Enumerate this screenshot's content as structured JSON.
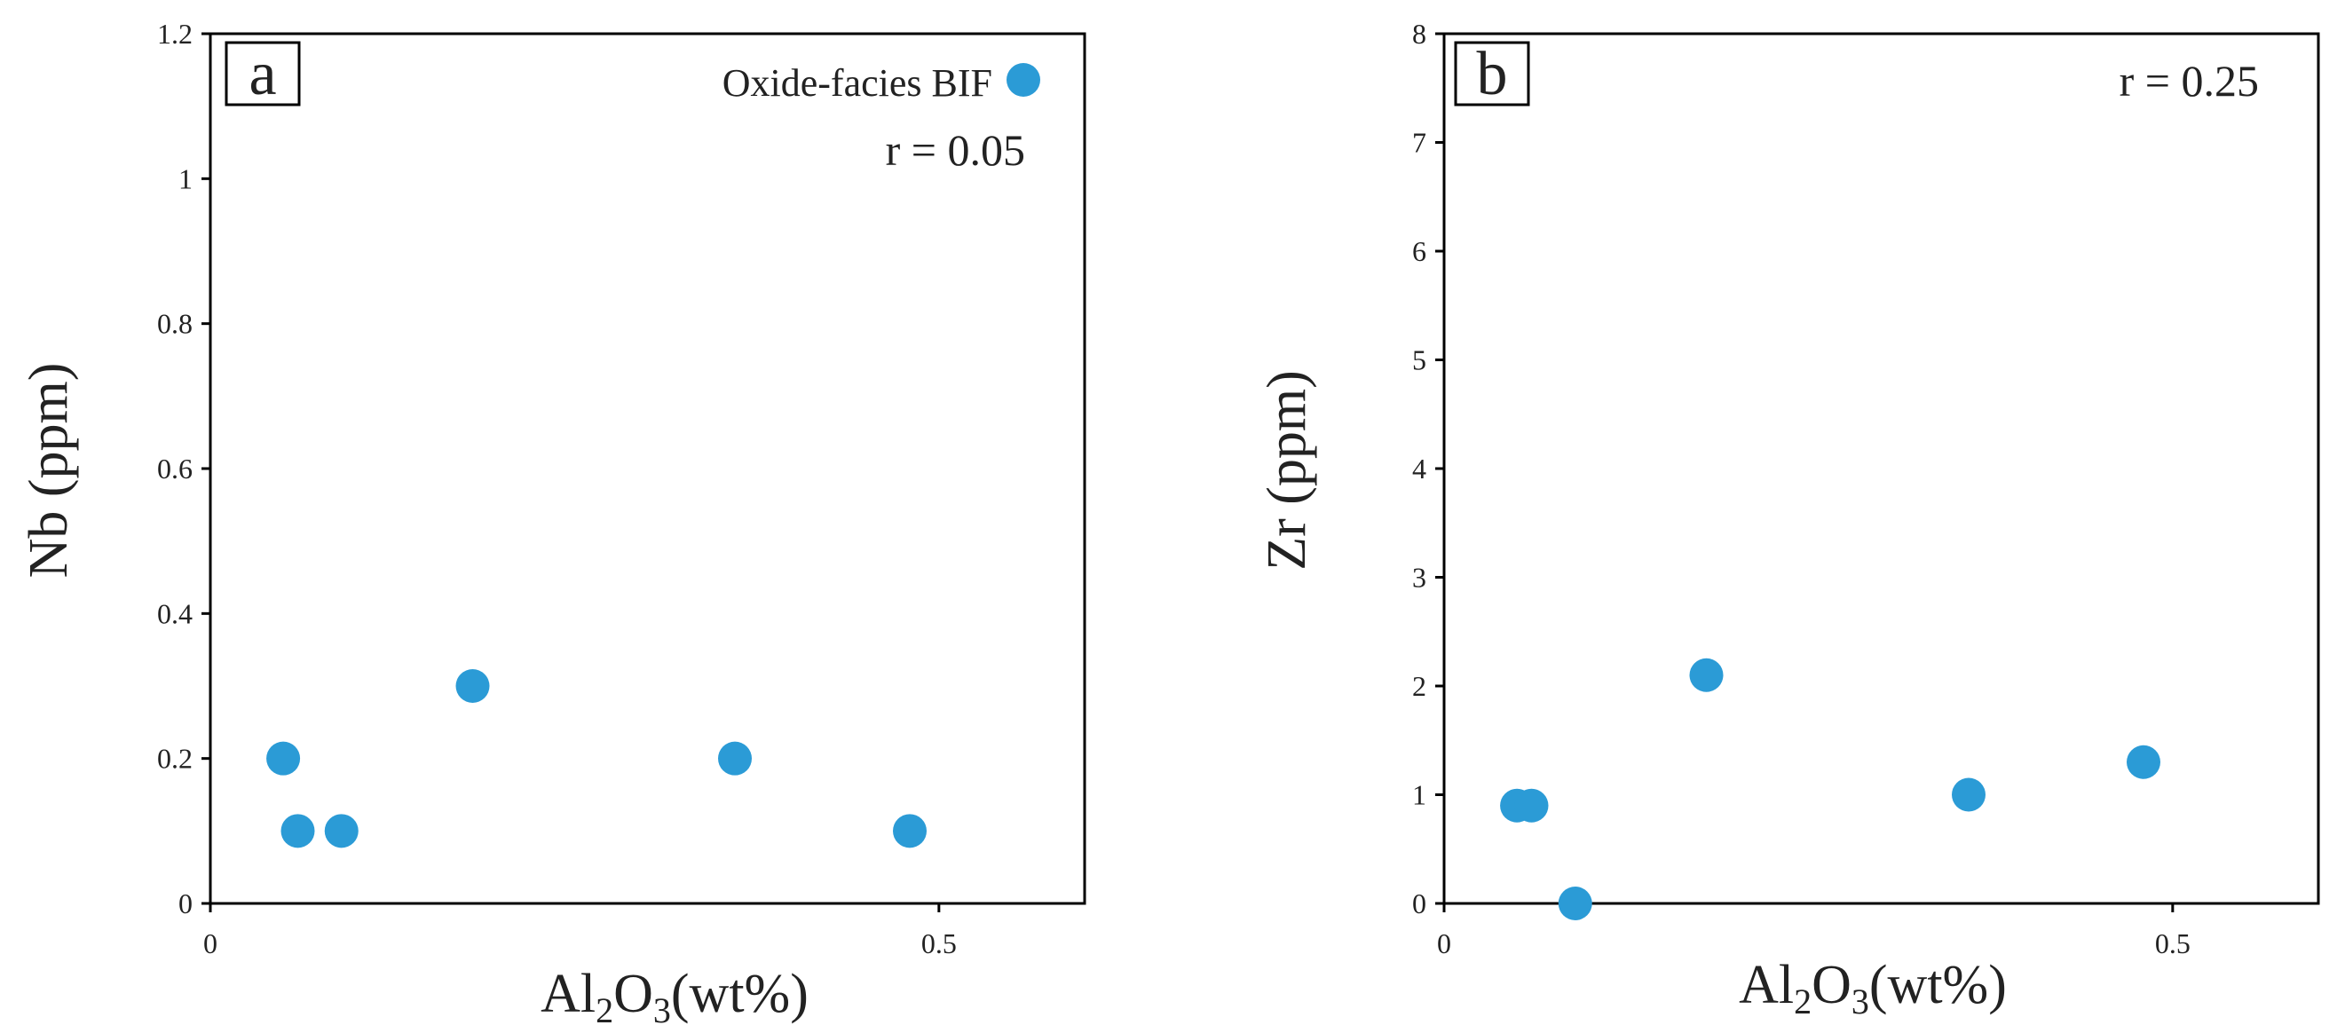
{
  "colors": {
    "marker": "#2b9bd6",
    "axis": "#000000",
    "text": "#222222"
  },
  "chart_data": [
    {
      "type": "scatter",
      "panel_label": "a",
      "xlabel_main": "Al",
      "xlabel_sub1": "2",
      "xlabel_mid": "O",
      "xlabel_sub2": "3",
      "xlabel_tail": "(wt%)",
      "ylabel": "Nb (ppm)",
      "xlim": [
        0,
        0.6
      ],
      "ylim": [
        0,
        1.2
      ],
      "xticks": [
        0,
        0.5
      ],
      "xtick_labels": [
        "0",
        "0.5"
      ],
      "yticks": [
        0,
        0.2,
        0.4,
        0.6,
        0.8,
        1,
        1.2
      ],
      "ytick_labels": [
        "0",
        "0.2",
        "0.4",
        "0.6",
        "0.8",
        "1",
        "1.2"
      ],
      "annotation": "r = 0.05",
      "legend": "Oxide-facies BIF",
      "series": [
        {
          "name": "Oxide-facies BIF",
          "x": [
            0.05,
            0.06,
            0.09,
            0.18,
            0.36,
            0.48
          ],
          "y": [
            0.2,
            0.1,
            0.1,
            0.3,
            0.2,
            0.1
          ]
        }
      ]
    },
    {
      "type": "scatter",
      "panel_label": "b",
      "xlabel_main": "Al",
      "xlabel_sub1": "2",
      "xlabel_mid": "O",
      "xlabel_sub2": "3",
      "xlabel_tail": "(wt%)",
      "ylabel": "Zr (ppm)",
      "xlim": [
        0,
        0.6
      ],
      "ylim": [
        0,
        8
      ],
      "xticks": [
        0,
        0.5
      ],
      "xtick_labels": [
        "0",
        "0.5"
      ],
      "yticks": [
        0,
        1,
        2,
        3,
        4,
        5,
        6,
        7,
        8
      ],
      "ytick_labels": [
        "0",
        "1",
        "2",
        "3",
        "4",
        "5",
        "6",
        "7",
        "8"
      ],
      "annotation": "r = 0.25",
      "series": [
        {
          "name": "Oxide-facies BIF",
          "x": [
            0.05,
            0.06,
            0.09,
            0.18,
            0.36,
            0.48
          ],
          "y": [
            0.9,
            0.9,
            0.0,
            2.1,
            1.0,
            1.3
          ]
        }
      ]
    }
  ]
}
